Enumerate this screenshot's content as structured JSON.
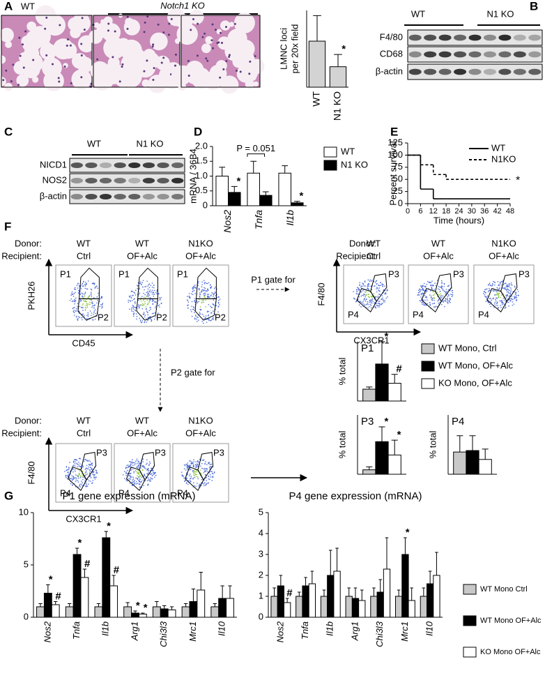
{
  "panels": {
    "A": {
      "label": "A",
      "wt": "WT",
      "ko": "Notch1 KO"
    },
    "B": {
      "label": "B",
      "groups": [
        "WT",
        "N1 KO"
      ],
      "rows": [
        "F4/80",
        "CD68",
        "β-actin"
      ]
    },
    "C": {
      "label": "C",
      "groups": [
        "WT",
        "N1 KO"
      ],
      "rows": [
        "NICD1",
        "NOS2",
        "β-actin"
      ]
    },
    "D": {
      "label": "D"
    },
    "E": {
      "label": "E"
    },
    "F": {
      "label": "F"
    },
    "G": {
      "label": "G"
    }
  },
  "flow": {
    "donor_label": "Donor:",
    "recipient_label": "Recipient:",
    "conditions": [
      {
        "donor": "WT",
        "recipient": "Ctrl"
      },
      {
        "donor": "WT",
        "recipient": "OF+Alc"
      },
      {
        "donor": "N1KO",
        "recipient": "OF+Alc"
      }
    ],
    "groups": [
      {
        "y_label": "PKH26",
        "x_label": "CD45",
        "gates": [
          "P1",
          "P2"
        ]
      },
      {
        "y_label": "F4/80",
        "x_label": "CX3CR1",
        "gates": [
          "P3",
          "P4"
        ]
      },
      {
        "y_label": "F4/80",
        "x_label": "CX3CR1",
        "gates": [
          "P3",
          "P4"
        ]
      }
    ],
    "arrows": [
      "P1 gate for",
      "P2 gate for"
    ]
  },
  "chart_data": [
    {
      "type": "bar",
      "y_label": [
        "LMNC loci",
        "per 20x field"
      ],
      "categories": [
        "WT",
        "N1 KO"
      ],
      "values": [
        4.5,
        2.0
      ],
      "errors": [
        2.5,
        1.2
      ],
      "markers": [
        null,
        "*"
      ],
      "color": "#d3d3d3",
      "ylim": [
        0,
        7.5
      ]
    },
    {
      "type": "bar",
      "y_label": "mRNA / 36B4",
      "categories": [
        "Nos2",
        "Tnfa",
        "Il1b"
      ],
      "series": [
        {
          "name": "WT",
          "color": "#ffffff",
          "values": [
            1.0,
            1.1,
            1.1
          ],
          "errors": [
            0.3,
            0.4,
            0.25
          ]
        },
        {
          "name": "N1 KO",
          "color": "#000000",
          "values": [
            0.45,
            0.35,
            0.1
          ],
          "errors": [
            0.2,
            0.12,
            0.05
          ],
          "markers": [
            "*",
            null,
            "*"
          ]
        }
      ],
      "ylim": [
        0,
        2
      ],
      "yticks": [
        0,
        0.5,
        {
          "value": 1,
          "label": "1.0"
        },
        1.5,
        {
          "value": 2,
          "label": "2.0"
        }
      ],
      "annotation": "P = 0.051"
    },
    {
      "type": "line",
      "y_label": "Percent survival",
      "x_label": "Time (hours)",
      "x": [
        0,
        6,
        12,
        18
      ],
      "series": [
        {
          "name": "WT",
          "color": "#000000",
          "dash": false,
          "values": [
            100,
            30,
            10,
            10
          ]
        },
        {
          "name": "N1KO",
          "color": "#000000",
          "dash": true,
          "values": [
            100,
            80,
            60,
            50
          ],
          "end_marker": "*"
        }
      ],
      "xlim": [
        0,
        48
      ],
      "xticks": [
        0,
        6,
        12,
        18,
        24,
        30,
        36,
        42,
        48
      ],
      "ylim": [
        0,
        125
      ],
      "yticks": [
        0,
        25,
        50,
        75,
        100,
        125
      ]
    },
    {
      "type": "bar",
      "title": "P1",
      "y_label": "% total",
      "series": [
        {
          "name": "WT Mono, Ctrl",
          "color": "#c8c8c8",
          "values": [
            8
          ],
          "errors": [
            1.5
          ]
        },
        {
          "name": "WT Mono, OF+Alc",
          "color": "#000000",
          "values": [
            25
          ],
          "errors": [
            15
          ],
          "markers": [
            "*"
          ]
        },
        {
          "name": "KO Mono, OF+Alc",
          "color": "#ffffff",
          "values": [
            12
          ],
          "errors": [
            6
          ],
          "markers": [
            "#"
          ]
        }
      ],
      "ylim": [
        0,
        40
      ]
    },
    {
      "type": "bar",
      "title": "P3",
      "y_label": "% total",
      "series": [
        {
          "color": "#c8c8c8",
          "values": [
            3
          ],
          "errors": [
            2
          ]
        },
        {
          "color": "#000000",
          "values": [
            22
          ],
          "errors": [
            10
          ],
          "markers": [
            "*"
          ]
        },
        {
          "color": "#ffffff",
          "values": [
            13
          ],
          "errors": [
            10
          ],
          "markers": [
            "*"
          ]
        }
      ],
      "ylim": [
        0,
        40
      ]
    },
    {
      "type": "bar",
      "title": "P4",
      "y_label": "% total",
      "series": [
        {
          "color": "#c8c8c8",
          "values": [
            15
          ],
          "errors": [
            11
          ]
        },
        {
          "color": "#000000",
          "values": [
            16
          ],
          "errors": [
            10
          ]
        },
        {
          "color": "#ffffff",
          "values": [
            10
          ],
          "errors": [
            7
          ]
        }
      ],
      "ylim": [
        0,
        40
      ]
    },
    {
      "type": "bar",
      "title": "P1 gene expression (mRNA)",
      "categories": [
        "Nos2",
        "Tnfa",
        "Il1b",
        "Arg1",
        "Chi3l3",
        "Mrc1",
        "Il10"
      ],
      "series": [
        {
          "name": "WT Mono Ctrl",
          "color": "#c8c8c8",
          "values": [
            1,
            1,
            1,
            1,
            1,
            1,
            1
          ],
          "errors": [
            0.3,
            0.3,
            0.3,
            0.4,
            0.5,
            0.3,
            0.3
          ]
        },
        {
          "name": "WT Mono OF+Alc",
          "color": "#000000",
          "values": [
            2.3,
            6,
            7.6,
            0.4,
            0.8,
            1.5,
            1.8
          ],
          "errors": [
            0.8,
            0.6,
            0.6,
            0.2,
            0.3,
            1.2,
            1.2
          ],
          "markers": [
            "*",
            "*",
            "*",
            "*",
            null,
            null,
            null
          ]
        },
        {
          "name": "KO Mono OF+Alc",
          "color": "#ffffff",
          "values": [
            1.2,
            3.8,
            3,
            0.3,
            0.7,
            2.6,
            1.8
          ],
          "errors": [
            0.3,
            0.8,
            1,
            0.1,
            0.3,
            1.7,
            1.2
          ],
          "markers": [
            "#",
            "#",
            "#",
            "*",
            null,
            null,
            null
          ]
        }
      ],
      "ylim": [
        0,
        10
      ],
      "yticks": [
        0,
        5,
        10
      ]
    },
    {
      "type": "bar",
      "title": "P4 gene expression (mRNA)",
      "categories": [
        "Nos2",
        "Tnfa",
        "Il1b",
        "Arg1",
        "Chi3l3",
        "Mrc1",
        "Il10"
      ],
      "series": [
        {
          "color": "#c8c8c8",
          "values": [
            1,
            1,
            1,
            1,
            1,
            1,
            1
          ],
          "errors": [
            0.4,
            0.2,
            0.3,
            0.4,
            0.4,
            0.3,
            0.4
          ]
        },
        {
          "color": "#000000",
          "values": [
            1.5,
            1.5,
            2,
            0.9,
            1.2,
            3,
            1.6
          ],
          "errors": [
            0.5,
            0.4,
            1.2,
            0.5,
            0.6,
            0.8,
            0.6
          ],
          "markers": [
            null,
            null,
            null,
            null,
            null,
            "*",
            null
          ]
        },
        {
          "color": "#ffffff",
          "values": [
            0.7,
            1.6,
            2.2,
            0.8,
            2.3,
            0.8,
            2
          ],
          "errors": [
            0.2,
            0.6,
            1.1,
            0.5,
            1.5,
            0.6,
            1.1
          ],
          "markers": [
            "#",
            null,
            null,
            null,
            null,
            null,
            null
          ]
        }
      ],
      "ylim": [
        0,
        5
      ],
      "yticks": [
        0,
        1,
        2,
        3,
        4,
        5
      ]
    }
  ]
}
